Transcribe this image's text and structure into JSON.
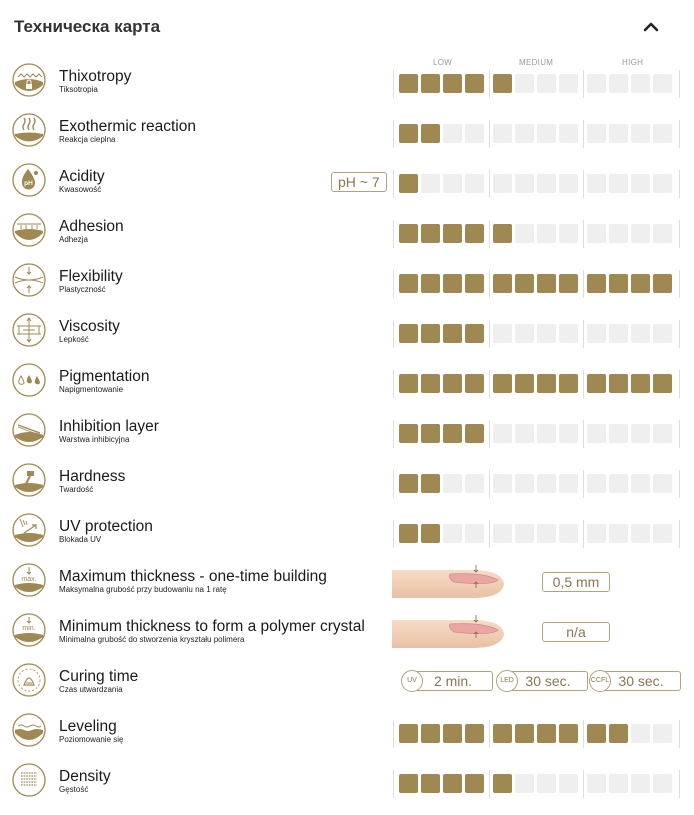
{
  "header": {
    "title": "Техническа карта"
  },
  "scale": {
    "low": "LOW",
    "medium": "MEDIUM",
    "high": "HIGH"
  },
  "colors": {
    "accent": "#a08852",
    "empty": "#efefef",
    "border": "#b5a27a"
  },
  "rows": [
    {
      "key": "thixotropy",
      "en": "Thixotropy",
      "pl": "Tiksotropia",
      "icon": "thixotropy-icon",
      "level": 5,
      "max": 12
    },
    {
      "key": "exothermic",
      "en": "Exothermic reaction",
      "pl": "Reakcja cieplna",
      "icon": "heat-waves-icon",
      "level": 2,
      "max": 12
    },
    {
      "key": "acidity",
      "en": "Acidity",
      "pl": "Kwasowość",
      "icon": "ph-drop-icon",
      "level": 1,
      "max": 12,
      "badge": "pH ~ 7"
    },
    {
      "key": "adhesion",
      "en": "Adhesion",
      "pl": "Adhezja",
      "icon": "adhesion-icon",
      "level": 5,
      "max": 12
    },
    {
      "key": "flexibility",
      "en": "Flexibility",
      "pl": "Plastyczność",
      "icon": "flexibility-icon",
      "level": 12,
      "max": 12
    },
    {
      "key": "viscosity",
      "en": "Viscosity",
      "pl": "Lepkość",
      "icon": "viscosity-icon",
      "level": 4,
      "max": 12
    },
    {
      "key": "pigmentation",
      "en": "Pigmentation",
      "pl": "Napigmentowanie",
      "icon": "drops-icon",
      "level": 12,
      "max": 12
    },
    {
      "key": "inhibition",
      "en": "Inhibition layer",
      "pl": "Warstwa inhibicyjna",
      "icon": "spatula-icon",
      "level": 4,
      "max": 12
    },
    {
      "key": "hardness",
      "en": "Hardness",
      "pl": "Twardość",
      "icon": "hammer-icon",
      "level": 2,
      "max": 12
    },
    {
      "key": "uv",
      "en": "UV protection",
      "pl": "Blokada UV",
      "icon": "uv-shield-icon",
      "level": 2,
      "max": 12
    },
    {
      "key": "maxthick",
      "en": "Maximum thickness - one-time building",
      "pl": "Maksymalna grubość przy budowaniu na 1 ratę",
      "icon": "max-thickness-icon",
      "icon_text": "max.",
      "value": "0,5 mm"
    },
    {
      "key": "minthick",
      "en": "Minimum thickness to form a polymer crystal",
      "pl": "Minimalna grubość do stworzenia kryształu polimera",
      "icon": "min-thickness-icon",
      "icon_text": "min.",
      "value": "n/a"
    },
    {
      "key": "curing",
      "en": "Curing time",
      "pl": "Czas utwardzania",
      "icon": "curing-lamp-icon",
      "cure": [
        {
          "lamp": "UV",
          "time": "2 min."
        },
        {
          "lamp": "LED",
          "time": "30 sec."
        },
        {
          "lamp": "CCFL",
          "time": "30 sec."
        }
      ]
    },
    {
      "key": "leveling",
      "en": "Leveling",
      "pl": "Poziomowanie się",
      "icon": "leveling-icon",
      "level": 10,
      "max": 12
    },
    {
      "key": "density",
      "en": "Density",
      "pl": "Gęstość",
      "icon": "density-icon",
      "level": 5,
      "max": 12
    }
  ]
}
